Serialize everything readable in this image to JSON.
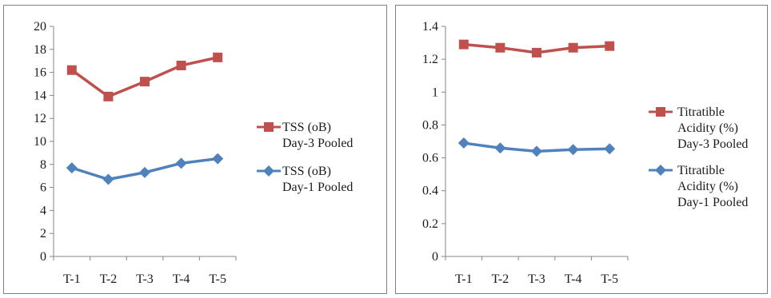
{
  "chart_data": [
    {
      "type": "line",
      "categories": [
        "T-1",
        "T-2",
        "T-3",
        "T-4",
        "T-5"
      ],
      "ylim": [
        0,
        20
      ],
      "yticks": [
        0,
        2,
        4,
        6,
        8,
        10,
        12,
        14,
        16,
        18,
        20
      ],
      "grid": false,
      "legend": "right",
      "series": [
        {
          "name": "TSS (oB) Day-3 Pooled",
          "legend_lines": [
            "TSS (oB)",
            "Day-3 Pooled"
          ],
          "marker": "square",
          "color": "#c0504d",
          "values": [
            16.2,
            13.9,
            15.2,
            16.6,
            17.3
          ]
        },
        {
          "name": "TSS (oB) Day-1 Pooled",
          "legend_lines": [
            "TSS (oB)",
            "Day-1 Pooled"
          ],
          "marker": "diamond",
          "color": "#4f81bd",
          "values": [
            7.7,
            6.7,
            7.3,
            8.1,
            8.5
          ]
        }
      ]
    },
    {
      "type": "line",
      "categories": [
        "T-1",
        "T-2",
        "T-3",
        "T-4",
        "T-5"
      ],
      "ylim": [
        0,
        1.4
      ],
      "yticks": [
        0,
        0.2,
        0.4,
        0.6,
        0.8,
        1,
        1.2,
        1.4
      ],
      "grid": false,
      "legend": "right",
      "series": [
        {
          "name": "Titratible Acidity (%) Day-3 Pooled",
          "legend_lines": [
            "Titratible",
            "Acidity (%)",
            "Day-3 Pooled"
          ],
          "marker": "square",
          "color": "#c0504d",
          "values": [
            1.29,
            1.27,
            1.24,
            1.27,
            1.28
          ]
        },
        {
          "name": "Titratible Acidity (%) Day-1 Pooled",
          "legend_lines": [
            "Titratible",
            "Acidity (%)",
            "Day-1 Pooled"
          ],
          "marker": "diamond",
          "color": "#4f81bd",
          "values": [
            0.69,
            0.66,
            0.64,
            0.65,
            0.655
          ]
        }
      ]
    }
  ]
}
